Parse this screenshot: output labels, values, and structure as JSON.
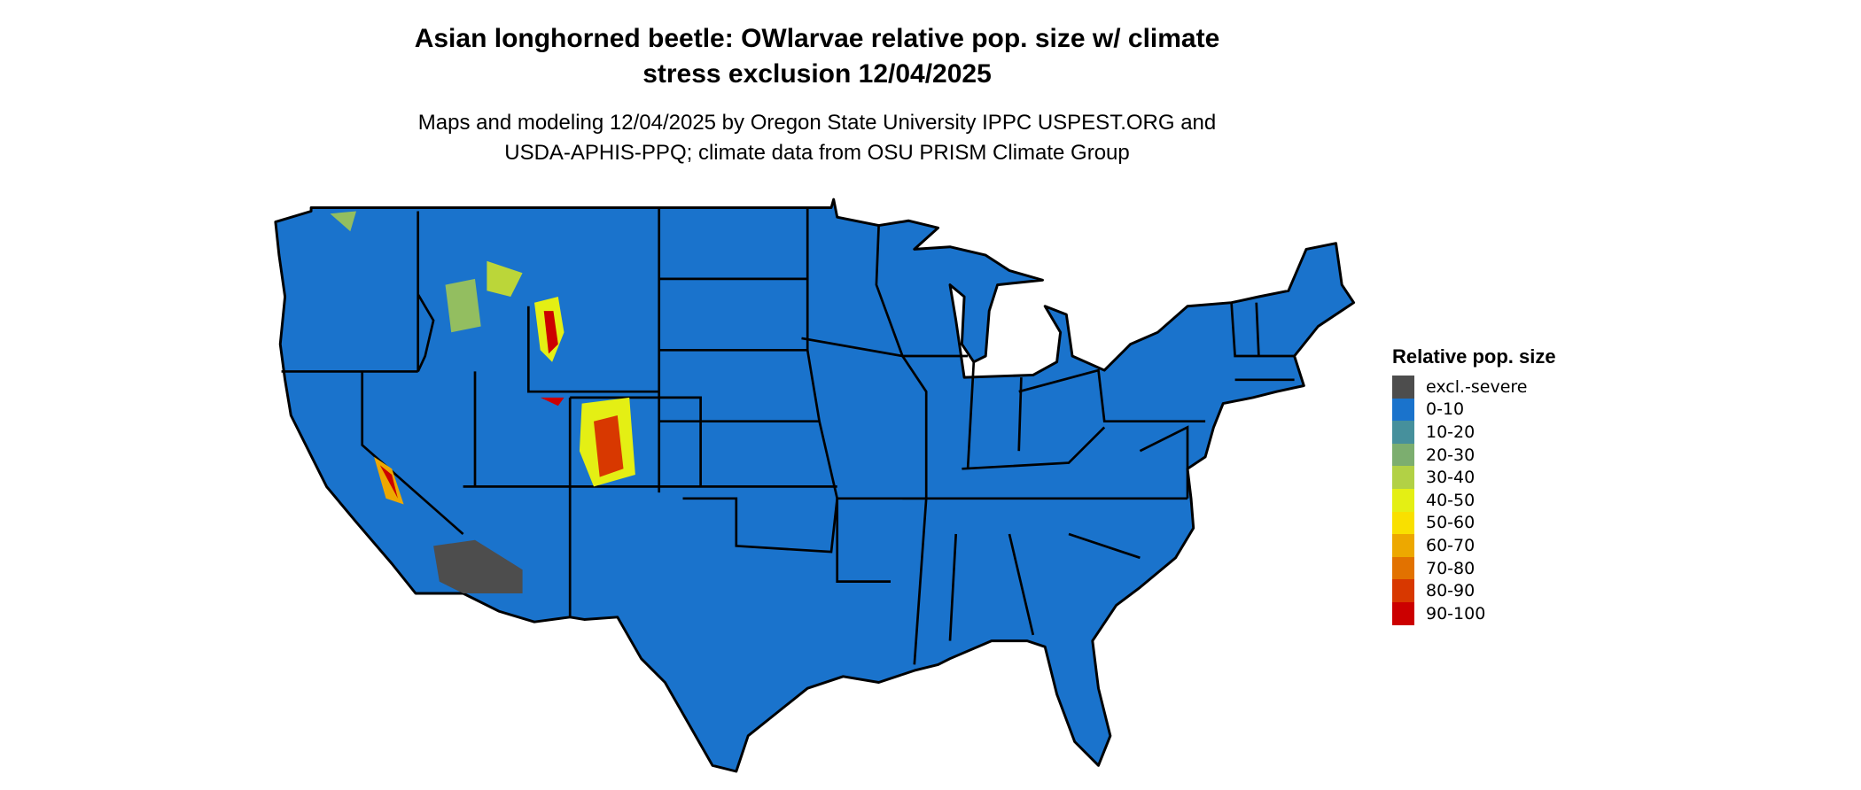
{
  "title": "Asian longhorned beetle: OWlarvae relative pop. size w/ climate stress exclusion 12/04/2025",
  "title_lines": [
    "Asian longhorned beetle: OWlarvae relative pop. size w/ climate",
    "stress exclusion 12/04/2025"
  ],
  "subtitle_lines": [
    "Maps and modeling 12/04/2025 by Oregon State University IPPC USPEST.ORG and",
    "USDA-APHIS-PPQ; climate data from OSU PRISM Climate Group"
  ],
  "map": {
    "region": "Contiguous United States",
    "base_color": "#1a73cc",
    "border_color": "#000000"
  },
  "legend": {
    "title": "Relative pop. size",
    "placement": "right",
    "items": [
      {
        "label": "excl.-severe",
        "color": "#4d4d4d"
      },
      {
        "label": "0-10",
        "color": "#1a73cc"
      },
      {
        "label": "10-20",
        "color": "#46909c"
      },
      {
        "label": "20-30",
        "color": "#7cae6f"
      },
      {
        "label": "30-40",
        "color": "#b2d145"
      },
      {
        "label": "40-50",
        "color": "#e4ef14"
      },
      {
        "label": "50-60",
        "color": "#f9e000"
      },
      {
        "label": "60-70",
        "color": "#eda800"
      },
      {
        "label": "70-80",
        "color": "#e27200"
      },
      {
        "label": "80-90",
        "color": "#d83800"
      },
      {
        "label": "90-100",
        "color": "#cc0000"
      }
    ]
  }
}
